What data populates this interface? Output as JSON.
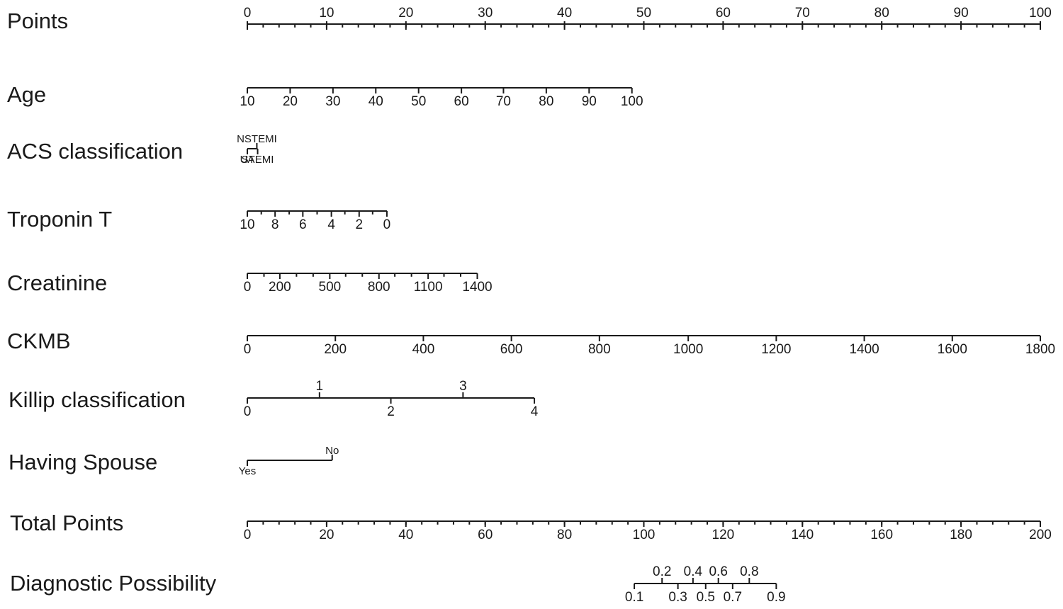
{
  "chart_data": {
    "type": "nomogram",
    "rows": [
      {
        "key": "points",
        "label": "Points",
        "scale": [
          0,
          100
        ],
        "labels": [
          {
            "text": "0",
            "at": 0,
            "side": "above"
          },
          {
            "text": "10",
            "at": 10,
            "side": "above"
          },
          {
            "text": "20",
            "at": 20,
            "side": "above"
          },
          {
            "text": "30",
            "at": 30,
            "side": "above"
          },
          {
            "text": "40",
            "at": 40,
            "side": "above"
          },
          {
            "text": "50",
            "at": 50,
            "side": "above"
          },
          {
            "text": "60",
            "at": 60,
            "side": "above"
          },
          {
            "text": "70",
            "at": 70,
            "side": "above"
          },
          {
            "text": "80",
            "at": 80,
            "side": "above"
          },
          {
            "text": "90",
            "at": 90,
            "side": "above"
          },
          {
            "text": "100",
            "at": 100,
            "side": "above"
          }
        ],
        "minor_step": 2
      },
      {
        "key": "age",
        "label": "Age",
        "scale": [
          0,
          48.5
        ],
        "labels": [
          {
            "text": "10",
            "at": 0
          },
          {
            "text": "20",
            "at": 5.4
          },
          {
            "text": "30",
            "at": 10.8
          },
          {
            "text": "40",
            "at": 16.2
          },
          {
            "text": "50",
            "at": 21.6
          },
          {
            "text": "60",
            "at": 27.0
          },
          {
            "text": "70",
            "at": 32.3
          },
          {
            "text": "80",
            "at": 37.7
          },
          {
            "text": "90",
            "at": 43.1
          },
          {
            "text": "100",
            "at": 48.5
          }
        ]
      },
      {
        "key": "acs",
        "label": "ACS classification",
        "scale": [
          0,
          1.3
        ],
        "labels": [
          {
            "text": "NSTEMI",
            "at": 1.2,
            "side": "above",
            "size": "small"
          },
          {
            "text": "UA",
            "at": 0,
            "side": "below",
            "size": "small"
          },
          {
            "text": "STEMI",
            "at": 1.3,
            "side": "below",
            "size": "small"
          }
        ]
      },
      {
        "key": "troponin",
        "label": "Troponin T",
        "scale": [
          0,
          17.6
        ],
        "labels": [
          {
            "text": "10",
            "at": 0
          },
          {
            "text": "8",
            "at": 3.5
          },
          {
            "text": "6",
            "at": 7.0
          },
          {
            "text": "4",
            "at": 10.6
          },
          {
            "text": "2",
            "at": 14.1
          },
          {
            "text": "0",
            "at": 17.6
          }
        ],
        "minor_at": [
          1.76,
          5.28,
          8.8,
          12.3,
          15.8
        ]
      },
      {
        "key": "creatinine",
        "label": "Creatinine",
        "scale": [
          0,
          29.0
        ],
        "labels": [
          {
            "text": "0",
            "at": 0
          },
          {
            "text": "200",
            "at": 4.1
          },
          {
            "text": "500",
            "at": 10.4
          },
          {
            "text": "800",
            "at": 16.6
          },
          {
            "text": "1100",
            "at": 22.8
          },
          {
            "text": "1400",
            "at": 29.0
          }
        ],
        "minor_at": [
          2.1,
          6.2,
          8.3,
          12.4,
          14.5,
          18.6,
          20.7,
          24.8,
          26.9
        ]
      },
      {
        "key": "ckmb",
        "label": "CKMB",
        "scale": [
          0,
          100
        ],
        "labels": [
          {
            "text": "0",
            "at": 0
          },
          {
            "text": "200",
            "at": 11.1
          },
          {
            "text": "400",
            "at": 22.2
          },
          {
            "text": "600",
            "at": 33.3
          },
          {
            "text": "800",
            "at": 44.4
          },
          {
            "text": "1000",
            "at": 55.6
          },
          {
            "text": "1200",
            "at": 66.7
          },
          {
            "text": "1400",
            "at": 77.8
          },
          {
            "text": "1600",
            "at": 88.9
          },
          {
            "text": "1800",
            "at": 100
          }
        ]
      },
      {
        "key": "killip",
        "label": "Killip classification",
        "scale": [
          0,
          36.2
        ],
        "labels": [
          {
            "text": "0",
            "at": 0,
            "side": "below"
          },
          {
            "text": "1",
            "at": 9.1,
            "side": "above"
          },
          {
            "text": "2",
            "at": 18.1,
            "side": "below"
          },
          {
            "text": "3",
            "at": 27.2,
            "side": "above"
          },
          {
            "text": "4",
            "at": 36.2,
            "side": "below"
          }
        ]
      },
      {
        "key": "spouse",
        "label": "Having Spouse",
        "scale": [
          0,
          10.7
        ],
        "labels": [
          {
            "text": "Yes",
            "at": 0,
            "side": "below",
            "size": "small"
          },
          {
            "text": "No",
            "at": 10.7,
            "side": "above",
            "size": "small"
          }
        ]
      },
      {
        "key": "total",
        "label": "Total Points",
        "scale": [
          0,
          100
        ],
        "labels": [
          {
            "text": "0",
            "at": 0
          },
          {
            "text": "20",
            "at": 10
          },
          {
            "text": "40",
            "at": 20
          },
          {
            "text": "60",
            "at": 30
          },
          {
            "text": "80",
            "at": 40
          },
          {
            "text": "100",
            "at": 50
          },
          {
            "text": "120",
            "at": 60
          },
          {
            "text": "140",
            "at": 70
          },
          {
            "text": "160",
            "at": 80
          },
          {
            "text": "180",
            "at": 90
          },
          {
            "text": "200",
            "at": 100
          }
        ],
        "minor_step": 2
      },
      {
        "key": "diagnostic",
        "label": "Diagnostic Possibility",
        "scale": [
          48.8,
          66.7
        ],
        "labels": [
          {
            "text": "0.1",
            "at": 48.8,
            "side": "below"
          },
          {
            "text": "0.2",
            "at": 52.3,
            "side": "above"
          },
          {
            "text": "0.3",
            "at": 54.3,
            "side": "below"
          },
          {
            "text": "0.4",
            "at": 56.2,
            "side": "above"
          },
          {
            "text": "0.5",
            "at": 57.8,
            "side": "below"
          },
          {
            "text": "0.6",
            "at": 59.4,
            "side": "above"
          },
          {
            "text": "0.7",
            "at": 61.2,
            "side": "below"
          },
          {
            "text": "0.8",
            "at": 63.3,
            "side": "above"
          },
          {
            "text": "0.9",
            "at": 66.7,
            "side": "below"
          }
        ]
      }
    ]
  }
}
